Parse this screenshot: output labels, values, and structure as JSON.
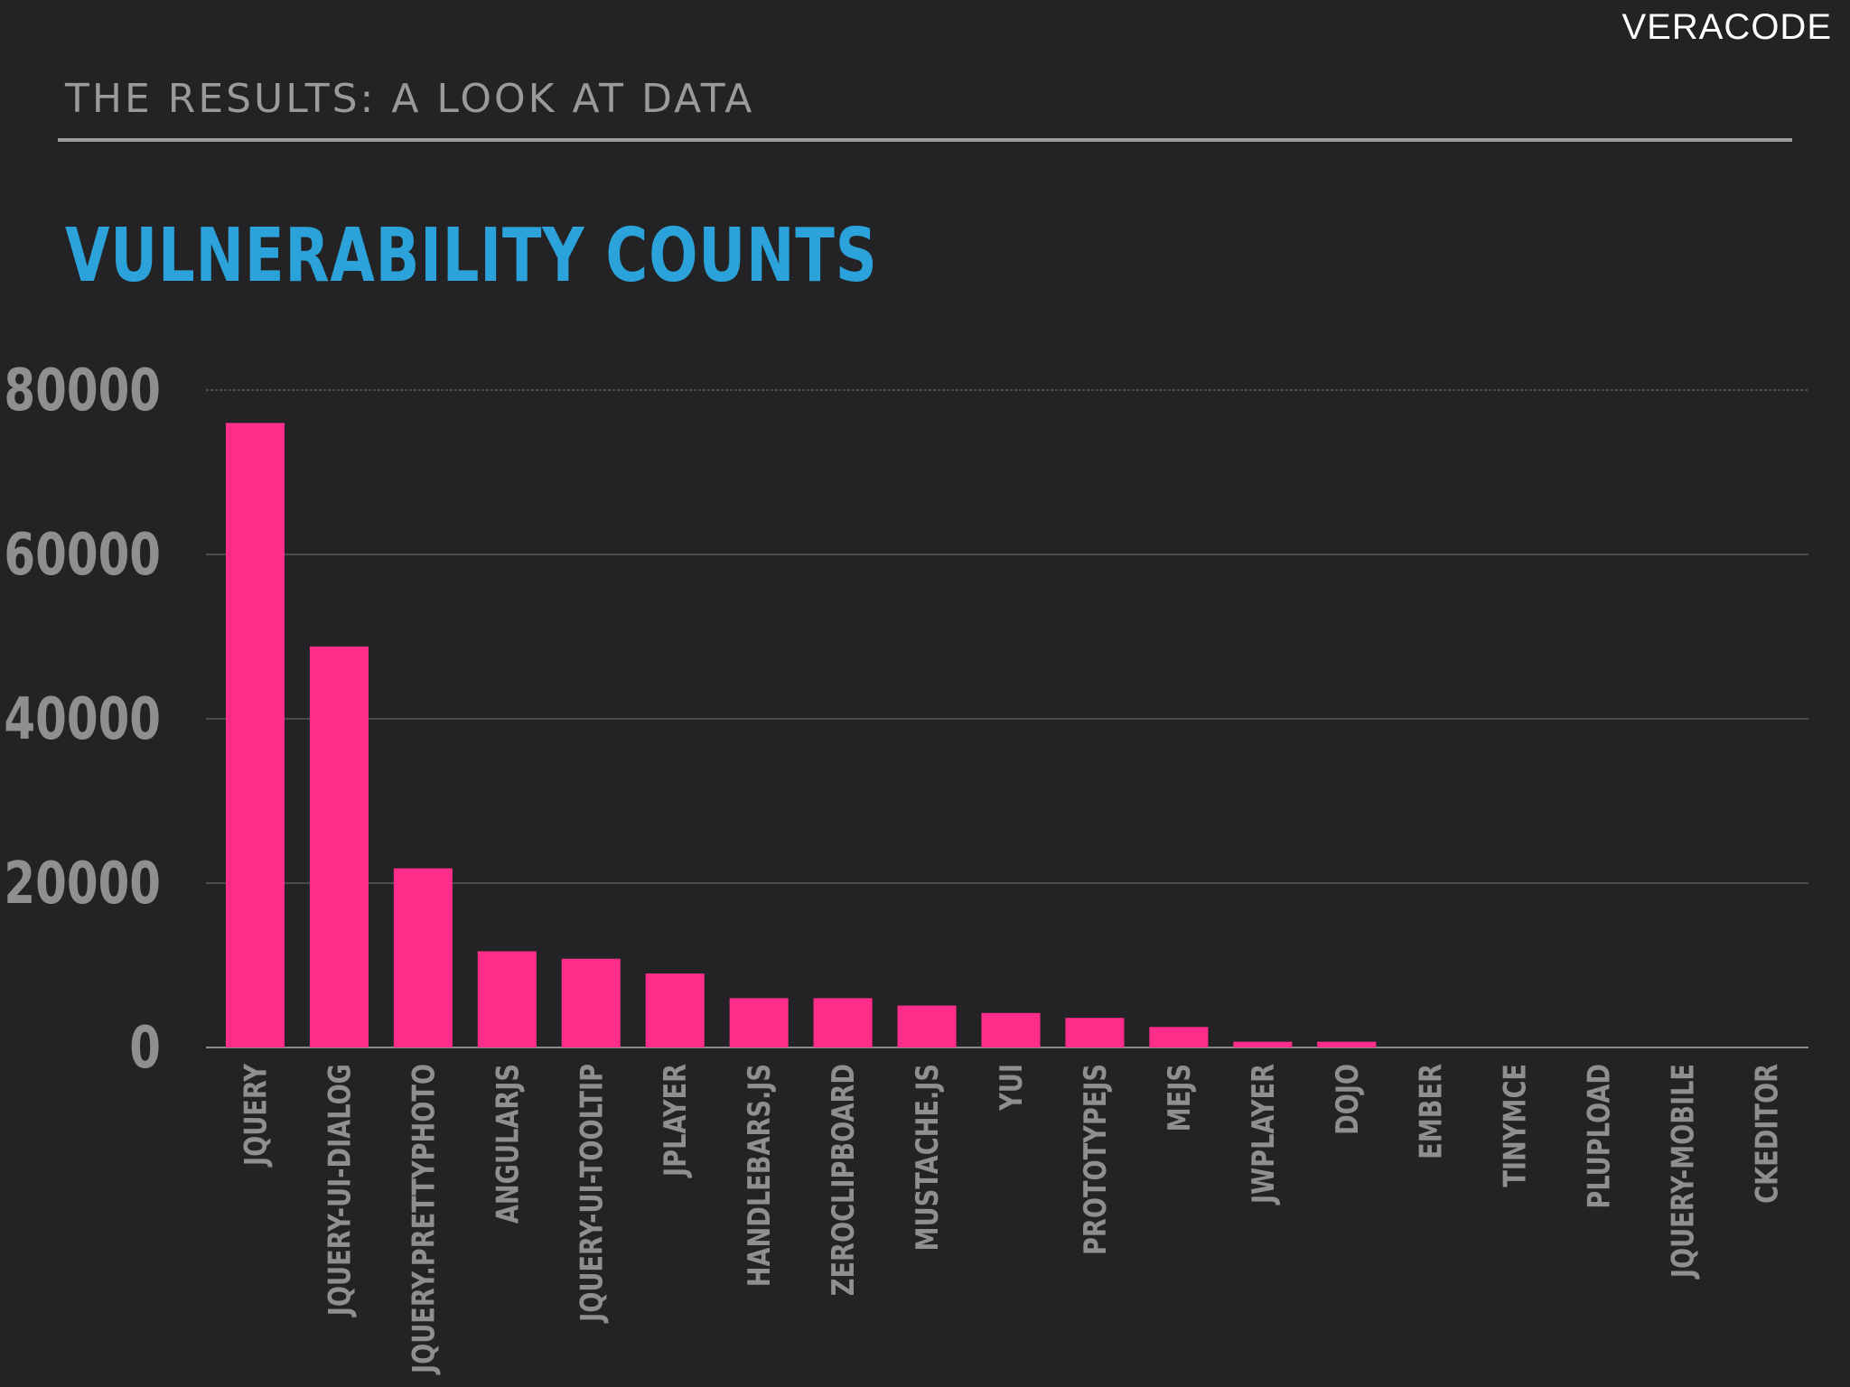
{
  "header": {
    "brand": "VERACODE",
    "section_title": "THE RESULTS: A LOOK AT DATA"
  },
  "colors": {
    "background": "#232325",
    "bar": "#ff2d8a",
    "title": "#2ba3da",
    "grid": "#5a5a5c",
    "axis_text": "#8f8f8f"
  },
  "chart_data": {
    "type": "bar",
    "title": "VULNERABILITY COUNTS",
    "xlabel": "",
    "ylabel": "",
    "ylim": [
      0,
      80000
    ],
    "yticks": [
      "0",
      "20000",
      "40000",
      "60000",
      "80000"
    ],
    "grid": "horizontal",
    "categories": [
      "JQUERY",
      "JQUERY-UI-DIALOG",
      "JQUERY.PRETTYPHOTO",
      "ANGULARJS",
      "JQUERY-UI-TOOLTIP",
      "JPLAYER",
      "HANDLEBARS.JS",
      "ZEROCLIPBOARD",
      "MUSTACHE.JS",
      "YUI",
      "PROTOTYPEJS",
      "MEJS",
      "JWPLAYER",
      "DOJO",
      "EMBER",
      "TINYMCE",
      "PLUPLOAD",
      "JQUERY-MOBILE",
      "CKEDITOR"
    ],
    "values": [
      76000,
      48800,
      21800,
      11700,
      10800,
      9000,
      6000,
      6000,
      5100,
      4200,
      3600,
      2500,
      700,
      700,
      0,
      0,
      0,
      0,
      0
    ]
  }
}
